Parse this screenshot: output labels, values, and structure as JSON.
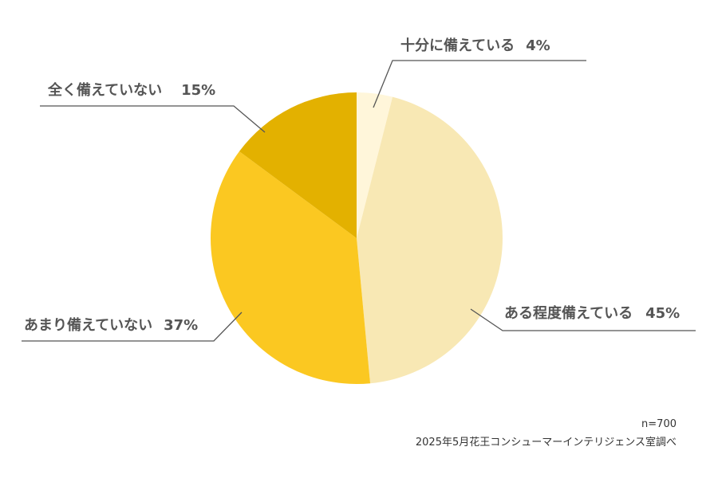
{
  "chart_data": {
    "type": "pie",
    "slices": [
      {
        "label": "十分に備えている",
        "value": 4,
        "value_label": "4%",
        "color": "#FFF6DA"
      },
      {
        "label": "ある程度備えている",
        "value": 45,
        "value_label": "45%",
        "color": "#F8E8B4"
      },
      {
        "label": "あまり備えていない",
        "value": 37,
        "value_label": "37%",
        "color": "#FBC821"
      },
      {
        "label": "全く備えていない",
        "value": 15,
        "value_label": "15%",
        "color": "#E3B100"
      }
    ],
    "start": "12 o'clock",
    "direction": "clockwise",
    "legend": "none",
    "sample_size": "n=700",
    "source": "2025年5月花王コンシューマーインテリジェンス室調べ"
  }
}
